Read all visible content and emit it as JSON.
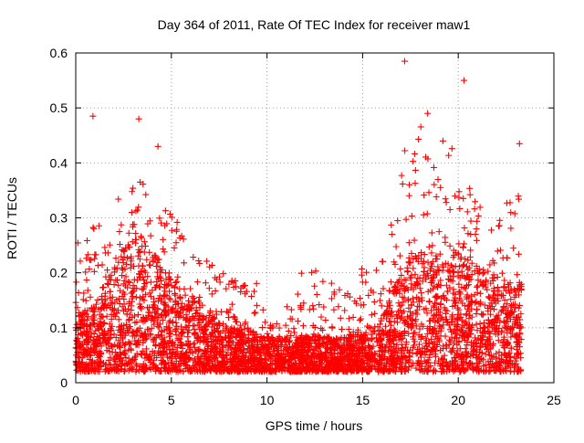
{
  "chart_data": {
    "type": "scatter",
    "title": "Day 364 of 2011, Rate Of TEC Index for receiver maw1",
    "xlabel": "GPS time / hours",
    "ylabel": "ROTI / TECUs",
    "xlim": [
      0,
      25
    ],
    "ylim": [
      0,
      0.6
    ],
    "xticks": [
      "0",
      "5",
      "10",
      "15",
      "20",
      "25"
    ],
    "yticks": [
      "0",
      "0.1",
      "0.2",
      "0.3",
      "0.4",
      "0.5",
      "0.6"
    ],
    "grid": true,
    "legend": "none",
    "marker": "plus",
    "color": "#ff0000",
    "x_extent": [
      0,
      23.3
    ],
    "envelope_hours": [
      0,
      1,
      2,
      3,
      4,
      5,
      6,
      7,
      8,
      9,
      10,
      11,
      12,
      13,
      14,
      15,
      16,
      17,
      18,
      19,
      20,
      21,
      22,
      23
    ],
    "envelope_typical_roti": [
      0.06,
      0.08,
      0.12,
      0.17,
      0.14,
      0.11,
      0.09,
      0.07,
      0.05,
      0.05,
      0.04,
      0.04,
      0.04,
      0.04,
      0.04,
      0.05,
      0.06,
      0.12,
      0.14,
      0.12,
      0.15,
      0.12,
      0.11,
      0.1
    ],
    "envelope_upper_roti": [
      0.24,
      0.27,
      0.32,
      0.38,
      0.33,
      0.3,
      0.22,
      0.2,
      0.17,
      0.18,
      0.14,
      0.13,
      0.2,
      0.17,
      0.16,
      0.19,
      0.2,
      0.42,
      0.45,
      0.35,
      0.45,
      0.3,
      0.3,
      0.32
    ],
    "peaks": [
      {
        "x": 0.9,
        "y": 0.485
      },
      {
        "x": 3.3,
        "y": 0.48
      },
      {
        "x": 17.2,
        "y": 0.585
      },
      {
        "x": 18.4,
        "y": 0.49
      },
      {
        "x": 20.3,
        "y": 0.55
      },
      {
        "x": 23.2,
        "y": 0.435
      },
      {
        "x": 4.3,
        "y": 0.43
      },
      {
        "x": 19.2,
        "y": 0.44
      }
    ]
  }
}
